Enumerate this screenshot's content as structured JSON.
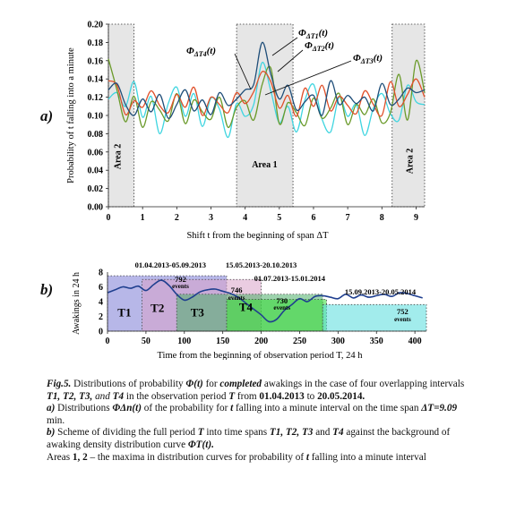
{
  "panel_a": {
    "label": "a)",
    "ylabel": "Probability of t falling into a minute",
    "xlabel": "Shift t from the beginning of span ΔT",
    "area_labels": {
      "left": "Area 2",
      "middle": "Area 1",
      "right": "Area 2"
    },
    "annotations": [
      {
        "text": "ΦΔT1(t)",
        "main": "Φ",
        "sub": "ΔT1",
        "suffix": "(t)"
      },
      {
        "text": "ΦΔT2(t)",
        "main": "Φ",
        "sub": "ΔT2",
        "suffix": "(t)"
      },
      {
        "text": "ΦΔT3(t)",
        "main": "Φ",
        "sub": "ΔT3",
        "suffix": "(t)"
      },
      {
        "text": "ΦΔT4(t)",
        "main": "Φ",
        "sub": "ΔT4",
        "suffix": "(t)"
      }
    ]
  },
  "panel_b": {
    "label": "b)",
    "ylabel": "Awakings in 24 h",
    "xlabel": "Time from the beginning of observation period T, 24 h",
    "spans": [
      {
        "name": "T1",
        "date_label": "01.04.2013-05.09.2013",
        "color": "#7b7bd6"
      },
      {
        "name": "T2",
        "date_label": "15.05.2013-20.10.2013",
        "events": "792",
        "events_label": "events",
        "color": "#d9a3c9"
      },
      {
        "name": "T3",
        "date_label": "01.07.2013-15.01.2014",
        "events": "746",
        "events_label": "events",
        "color": "#4caf6a"
      },
      {
        "name": "T4",
        "date_label": "",
        "events": "730",
        "events_label": "events",
        "color": "#33dd33"
      },
      {
        "name": "",
        "date_label": "15.09.2013-20.05.2014",
        "events": "752",
        "events_label": "events",
        "color": "#55dddd"
      }
    ]
  },
  "chart_data": [
    {
      "type": "line",
      "x": [
        0,
        0.25,
        0.5,
        0.75,
        1,
        1.25,
        1.5,
        1.75,
        2,
        2.25,
        2.5,
        2.75,
        3,
        3.25,
        3.5,
        3.75,
        4,
        4.25,
        4.5,
        4.75,
        5,
        5.25,
        5.5,
        5.75,
        6,
        6.25,
        6.5,
        6.75,
        7,
        7.25,
        7.5,
        7.75,
        8,
        8.25,
        8.5,
        8.75,
        9,
        9.25
      ],
      "series": [
        {
          "name": "ΦΔT1(t)",
          "color": "#1f4e79",
          "values": [
            0.128,
            0.135,
            0.112,
            0.1,
            0.118,
            0.104,
            0.123,
            0.097,
            0.112,
            0.128,
            0.105,
            0.117,
            0.101,
            0.125,
            0.111,
            0.118,
            0.128,
            0.134,
            0.18,
            0.145,
            0.118,
            0.133,
            0.106,
            0.115,
            0.122,
            0.1,
            0.138,
            0.112,
            0.122,
            0.113,
            0.12,
            0.105,
            0.135,
            0.112,
            0.118,
            0.13,
            0.125,
            0.128
          ]
        },
        {
          "name": "ΦΔT2(t)",
          "color": "#e0502a",
          "values": [
            0.138,
            0.133,
            0.101,
            0.116,
            0.109,
            0.127,
            0.111,
            0.103,
            0.123,
            0.109,
            0.131,
            0.1,
            0.12,
            0.112,
            0.103,
            0.125,
            0.113,
            0.126,
            0.148,
            0.137,
            0.108,
            0.122,
            0.099,
            0.13,
            0.11,
            0.133,
            0.105,
            0.121,
            0.111,
            0.102,
            0.127,
            0.112,
            0.1,
            0.137,
            0.11,
            0.123,
            0.14,
            0.12
          ]
        },
        {
          "name": "ΦΔT3(t)",
          "color": "#6a9a2a",
          "values": [
            0.162,
            0.128,
            0.093,
            0.121,
            0.087,
            0.115,
            0.106,
            0.094,
            0.124,
            0.091,
            0.117,
            0.104,
            0.096,
            0.12,
            0.087,
            0.109,
            0.116,
            0.095,
            0.134,
            0.152,
            0.091,
            0.114,
            0.103,
            0.089,
            0.119,
            0.097,
            0.108,
            0.124,
            0.09,
            0.112,
            0.101,
            0.118,
            0.092,
            0.103,
            0.145,
            0.095,
            0.16,
            0.125
          ]
        },
        {
          "name": "ΦΔT4(t)",
          "color": "#3fd5e0",
          "values": [
            0.118,
            0.125,
            0.11,
            0.137,
            0.098,
            0.121,
            0.08,
            0.113,
            0.131,
            0.099,
            0.124,
            0.088,
            0.119,
            0.107,
            0.076,
            0.113,
            0.099,
            0.112,
            0.158,
            0.127,
            0.092,
            0.11,
            0.082,
            0.117,
            0.134,
            0.096,
            0.082,
            0.12,
            0.099,
            0.112,
            0.078,
            0.108,
            0.124,
            0.102,
            0.095,
            0.133,
            0.115,
            0.112
          ]
        }
      ],
      "xlabel": "Shift t from the beginning of span ΔT",
      "ylabel": "Probability of t falling into a minute",
      "xlim": [
        0,
        9.25
      ],
      "ylim": [
        0,
        0.2
      ],
      "x_ticks": [
        0,
        1,
        2,
        3,
        4,
        5,
        6,
        7,
        8,
        9
      ],
      "y_ticks": [
        "0.00",
        "0.02",
        "0.04",
        "0.06",
        "0.08",
        "0.10",
        "0.12",
        "0.14",
        "0.16",
        "0.18",
        "0.20"
      ],
      "shaded_areas": [
        {
          "label": "Area 2",
          "x": [
            0,
            0.75
          ]
        },
        {
          "label": "Area 1",
          "x": [
            3.75,
            5.4
          ]
        },
        {
          "label": "Area 2",
          "x": [
            8.3,
            9.25
          ]
        }
      ],
      "grid": false
    },
    {
      "type": "line",
      "x": [
        0,
        10,
        20,
        30,
        40,
        50,
        60,
        70,
        80,
        90,
        100,
        110,
        120,
        130,
        140,
        150,
        160,
        170,
        180,
        190,
        200,
        210,
        220,
        230,
        240,
        250,
        260,
        270,
        280,
        290,
        300,
        310,
        320,
        330,
        340,
        350,
        360,
        370,
        380,
        390,
        400,
        410
      ],
      "series": [
        {
          "name": "ΦT(t)",
          "color": "#1f3f8f",
          "values": [
            5.2,
            5.6,
            6.0,
            5.8,
            6.1,
            5.5,
            6.3,
            6.9,
            6.2,
            5.0,
            4.2,
            4.6,
            5.3,
            5.6,
            5.7,
            5.4,
            5.1,
            4.6,
            3.8,
            3.0,
            2.2,
            1.3,
            1.6,
            2.8,
            3.6,
            4.4,
            4.0,
            4.7,
            4.8,
            4.6,
            4.4,
            5.0,
            4.5,
            4.9,
            4.6,
            4.8,
            5.0,
            4.7,
            5.2,
            5.1,
            4.8,
            4.5
          ]
        }
      ],
      "xlabel": "Time from the beginning of observation period T, 24 h",
      "ylabel": "Awakings in 24 h",
      "xlim": [
        0,
        415
      ],
      "ylim": [
        0,
        8
      ],
      "x_ticks": [
        0,
        50,
        100,
        150,
        200,
        250,
        300,
        350,
        400
      ],
      "y_ticks": [
        0,
        2,
        4,
        6,
        8
      ],
      "spans": [
        {
          "name": "T1",
          "x": [
            0,
            155
          ],
          "y": [
            0,
            7.5
          ]
        },
        {
          "name": "T2",
          "x": [
            45,
            200
          ],
          "y": [
            0,
            7.0
          ]
        },
        {
          "name": "T3",
          "x": [
            90,
            280
          ],
          "y": [
            0,
            5.0
          ]
        },
        {
          "name": "T4",
          "x": [
            155,
            285
          ],
          "y": [
            0,
            4.3
          ]
        },
        {
          "name": "",
          "x": [
            280,
            415
          ],
          "y": [
            0,
            3.6
          ]
        }
      ]
    }
  ],
  "caption": {
    "fig_label": "Fig.5.",
    "line1_a": " Distributions of probability ",
    "phi_t": "Φ(t)",
    "line1_b": " for ",
    "completed": "completed",
    "line1_c": " awakings in the case of four overlapping intervals ",
    "t1": "T1, T2, T3,",
    "and": " and",
    "t4": " T4",
    "line1_d": " in the observation period ",
    "T": "T",
    "line1_e": " from ",
    "date_from": "01.04.2013",
    "to": " to ",
    "date_to": "20.05.2014.",
    "a_label": "a)",
    "a_text1": " Distributions ",
    "a_phi": "ΦΔn(t)",
    "a_text2": " of the probability for ",
    "a_t": "t",
    "a_text3": " falling into a minute interval on the time span ",
    "a_dt": "ΔT=9.09",
    "a_text4": " min.",
    "b_label": "b)",
    "b_text1": " Scheme of dividing the full period ",
    "b_T": "T",
    "b_text2": " into time spans ",
    "b_spans": "T1, T2, T3",
    "b_and": " and ",
    "b_t4": "T4",
    "b_text3": " against the background of awaking density distribution  curve ",
    "b_phi": "ΦT(t).",
    "areas_line": "Areas ",
    "areas_nums": "1, 2",
    "areas_rest": " – the maxima in distribution curves for probability of ",
    "areas_t": "t",
    "areas_end": " falling into a minute interval"
  }
}
